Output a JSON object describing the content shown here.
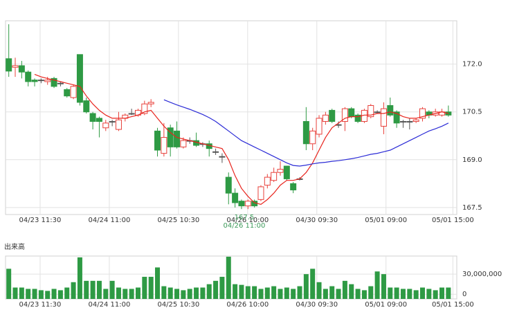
{
  "chart_data": [
    {
      "type": "candlestick",
      "open": [
        172.17,
        171.9,
        171.95,
        171.75,
        171.5,
        171.5,
        171.45,
        171.55,
        171.4,
        171.2,
        170.95,
        172.3,
        170.85,
        170.45,
        170.3,
        170.0,
        170.2,
        169.95,
        170.3,
        170.45,
        170.4,
        170.45,
        170.75,
        169.9,
        169.2,
        170.0,
        169.9,
        169.4,
        169.6,
        169.6,
        169.5,
        169.5,
        169.25,
        169.1,
        168.45,
        167.95,
        167.7,
        167.55,
        167.7,
        167.75,
        168.2,
        168.35,
        168.6,
        168.8,
        168.25,
        168.4,
        170.2,
        169.5,
        169.8,
        170.2,
        170.55,
        170.1,
        170.2,
        170.6,
        170.4,
        170.2,
        170.35,
        170.5,
        170.05,
        170.7,
        170.5,
        170.2,
        170.2,
        170.2,
        170.3,
        170.5,
        170.4,
        170.4,
        170.5
      ],
      "high": [
        173.25,
        172.2,
        172.1,
        171.8,
        171.55,
        171.55,
        171.6,
        171.6,
        171.45,
        171.25,
        171.35,
        172.3,
        170.95,
        170.5,
        170.35,
        170.25,
        170.25,
        170.5,
        170.45,
        170.6,
        170.6,
        170.85,
        170.9,
        170.0,
        170.15,
        170.1,
        170.2,
        169.7,
        169.7,
        169.85,
        169.55,
        169.6,
        169.35,
        169.2,
        168.6,
        168.1,
        167.75,
        167.75,
        167.75,
        168.2,
        168.55,
        168.75,
        168.95,
        168.8,
        168.3,
        168.45,
        170.65,
        170.0,
        170.4,
        170.5,
        170.6,
        170.2,
        170.65,
        170.65,
        170.45,
        170.6,
        170.75,
        170.55,
        170.8,
        170.95,
        170.55,
        170.25,
        170.3,
        170.3,
        170.65,
        170.55,
        170.6,
        170.6,
        170.7
      ],
      "low": [
        171.6,
        171.6,
        171.55,
        171.3,
        171.3,
        171.4,
        171.35,
        171.25,
        171.3,
        170.95,
        170.9,
        170.7,
        170.45,
        169.95,
        169.7,
        169.9,
        170.05,
        169.9,
        170.2,
        170.4,
        170.35,
        170.4,
        170.65,
        169.1,
        169.1,
        169.1,
        169.35,
        169.35,
        169.5,
        169.4,
        169.4,
        169.1,
        169.15,
        168.9,
        167.6,
        167.5,
        167.45,
        167.45,
        167.5,
        167.7,
        168.1,
        168.3,
        168.5,
        168.35,
        167.95,
        168.35,
        169.3,
        169.3,
        169.7,
        170.1,
        170.15,
        170.0,
        169.9,
        170.3,
        170.15,
        170.15,
        170.3,
        170.45,
        169.8,
        170.35,
        170.0,
        170.0,
        169.95,
        170.15,
        170.2,
        170.3,
        170.35,
        170.35,
        170.35
      ],
      "close": [
        171.78,
        171.95,
        171.75,
        171.45,
        171.45,
        171.5,
        171.5,
        171.3,
        171.4,
        171.0,
        171.3,
        170.8,
        170.5,
        170.2,
        170.2,
        170.15,
        170.2,
        170.25,
        170.4,
        170.45,
        170.55,
        170.75,
        170.8,
        169.3,
        169.7,
        169.4,
        169.4,
        169.6,
        169.6,
        169.45,
        169.5,
        169.35,
        169.25,
        169.1,
        167.95,
        167.65,
        167.55,
        167.7,
        167.55,
        168.15,
        168.45,
        168.6,
        168.7,
        168.4,
        168.05,
        168.4,
        169.5,
        169.9,
        170.3,
        170.4,
        170.2,
        170.1,
        170.6,
        170.35,
        170.2,
        170.55,
        170.7,
        170.5,
        170.6,
        170.4,
        170.15,
        170.2,
        170.2,
        170.25,
        170.6,
        170.4,
        170.5,
        170.5,
        170.4
      ],
      "up_color": "#e8403a",
      "down_color": "#2e9a44",
      "series": [
        {
          "color": "#e8231c",
          "values": [
            null,
            null,
            null,
            null,
            171.68,
            171.6,
            171.55,
            171.5,
            171.45,
            171.4,
            171.35,
            171.3,
            171.0,
            170.75,
            170.55,
            170.4,
            170.3,
            170.3,
            170.3,
            170.35,
            170.4,
            170.5,
            170.55,
            170.3,
            170.05,
            169.85,
            169.7,
            169.65,
            169.6,
            169.55,
            169.5,
            169.45,
            169.4,
            169.35,
            169.0,
            168.5,
            168.1,
            167.85,
            167.65,
            167.6,
            167.75,
            167.95,
            168.2,
            168.35,
            168.35,
            168.4,
            168.6,
            168.9,
            169.3,
            169.7,
            170.0,
            170.15,
            170.3,
            170.35,
            170.35,
            170.4,
            170.4,
            170.45,
            170.45,
            170.5,
            170.45,
            170.35,
            170.3,
            170.3,
            170.35,
            170.4,
            170.45,
            170.5,
            170.45
          ]
        },
        {
          "color": "#2b2bd6",
          "values": [
            null,
            null,
            null,
            null,
            null,
            null,
            null,
            null,
            null,
            null,
            null,
            null,
            null,
            null,
            null,
            null,
            null,
            null,
            null,
            null,
            null,
            null,
            null,
            null,
            170.88,
            170.8,
            170.72,
            170.65,
            170.58,
            170.5,
            170.42,
            170.32,
            170.2,
            170.05,
            169.9,
            169.75,
            169.6,
            169.5,
            169.4,
            169.3,
            169.2,
            169.1,
            169.0,
            168.9,
            168.82,
            168.8,
            168.83,
            168.87,
            168.9,
            168.92,
            168.95,
            168.97,
            169.0,
            169.03,
            169.07,
            169.12,
            169.17,
            169.2,
            169.25,
            169.3,
            169.4,
            169.5,
            169.6,
            169.7,
            169.8,
            169.9,
            169.97,
            170.05,
            170.15
          ]
        }
      ],
      "ylim": [
        167.28,
        173.36
      ],
      "yticks": [
        {
          "value": 172,
          "label": "172.0"
        },
        170.5,
        {
          "value": 169,
          "label": "169.0"
        },
        167.5
      ],
      "xlim": [
        -0.5,
        69.3
      ],
      "xticks": [
        {
          "value": 4.85,
          "label": "04/23 11:30"
        },
        {
          "value": 15.55,
          "label": "04/24 11:00"
        },
        {
          "value": 26.25,
          "label": "04/25 10:30"
        },
        {
          "value": 36.95,
          "label": "04/26 10:00"
        },
        {
          "value": 47.65,
          "label": "04/30 09:30"
        },
        {
          "value": 58.35,
          "label": "05/01 09:00"
        },
        {
          "value": 68.7,
          "label": "05/01 15:00"
        }
      ],
      "grid": true,
      "annotation": {
        "price": "167.5",
        "time": "04/26 11:00",
        "color": "#3d9a5a"
      }
    },
    {
      "type": "bar",
      "title": "出来高",
      "color": "#2e9a44",
      "values": [
        38000000,
        10000000,
        10000000,
        8000000,
        8000000,
        6000000,
        5000000,
        8000000,
        6000000,
        10000000,
        18000000,
        55000000,
        20000000,
        20000000,
        20000000,
        8000000,
        20000000,
        10000000,
        8000000,
        8000000,
        10000000,
        26000000,
        26000000,
        40000000,
        12000000,
        10000000,
        8000000,
        6000000,
        8000000,
        10000000,
        10000000,
        15000000,
        20000000,
        26000000,
        56000000,
        15000000,
        14000000,
        12000000,
        12000000,
        8000000,
        10000000,
        12000000,
        8000000,
        10000000,
        8000000,
        12000000,
        30000000,
        38000000,
        18000000,
        8000000,
        12000000,
        8000000,
        20000000,
        15000000,
        8000000,
        6000000,
        12000000,
        34000000,
        30000000,
        10000000,
        10000000,
        8000000,
        8000000,
        6000000,
        10000000,
        8000000,
        6000000,
        10000000,
        10000000
      ],
      "ylim": [
        -7000000,
        57000000
      ],
      "yticks": [
        {
          "value": 30000000,
          "label": "30,000,000"
        },
        0
      ],
      "xlim": [
        -0.5,
        69.3
      ],
      "xticks": [
        {
          "value": 4.85,
          "label": "04/23 11:30"
        },
        {
          "value": 15.55,
          "label": "04/24 11:00"
        },
        {
          "value": 26.25,
          "label": "04/25 10:30"
        },
        {
          "value": 36.95,
          "label": "04/26 10:00"
        },
        {
          "value": 47.65,
          "label": "04/30 09:30"
        },
        {
          "value": 58.35,
          "label": "05/01 09:00"
        },
        {
          "value": 68.7,
          "label": "05/01 15:00"
        }
      ],
      "grid": true
    }
  ]
}
